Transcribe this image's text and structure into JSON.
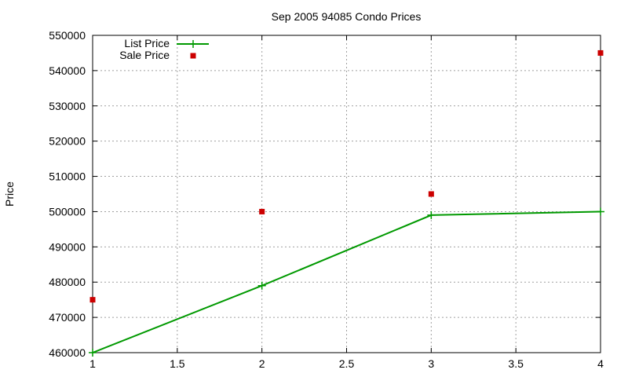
{
  "chart_data": {
    "type": "line",
    "title": "Sep 2005 94085 Condo Prices",
    "xlabel": "",
    "ylabel": "Price",
    "xlim": [
      1,
      4
    ],
    "ylim": [
      460000,
      550000
    ],
    "x_ticks": [
      1,
      1.5,
      2,
      2.5,
      3,
      3.5,
      4
    ],
    "x_tick_labels": [
      "1",
      "1.5",
      "2",
      "2.5",
      "3",
      "3.5",
      "4"
    ],
    "y_ticks": [
      460000,
      470000,
      480000,
      490000,
      500000,
      510000,
      520000,
      530000,
      540000,
      550000
    ],
    "y_tick_labels": [
      "460000",
      "470000",
      "480000",
      "490000",
      "500000",
      "510000",
      "520000",
      "530000",
      "540000",
      "550000"
    ],
    "grid": true,
    "legend_position": "top-left",
    "series": [
      {
        "name": "List Price",
        "style": "linespoints",
        "color": "#009900",
        "marker": "plus",
        "x": [
          1,
          2,
          3,
          4
        ],
        "y": [
          460000,
          479000,
          499000,
          500000
        ]
      },
      {
        "name": "Sale Price",
        "style": "points",
        "color": "#cc0000",
        "marker": "square",
        "x": [
          1,
          2,
          3,
          4
        ],
        "y": [
          475000,
          500000,
          505000,
          545000
        ]
      }
    ]
  }
}
